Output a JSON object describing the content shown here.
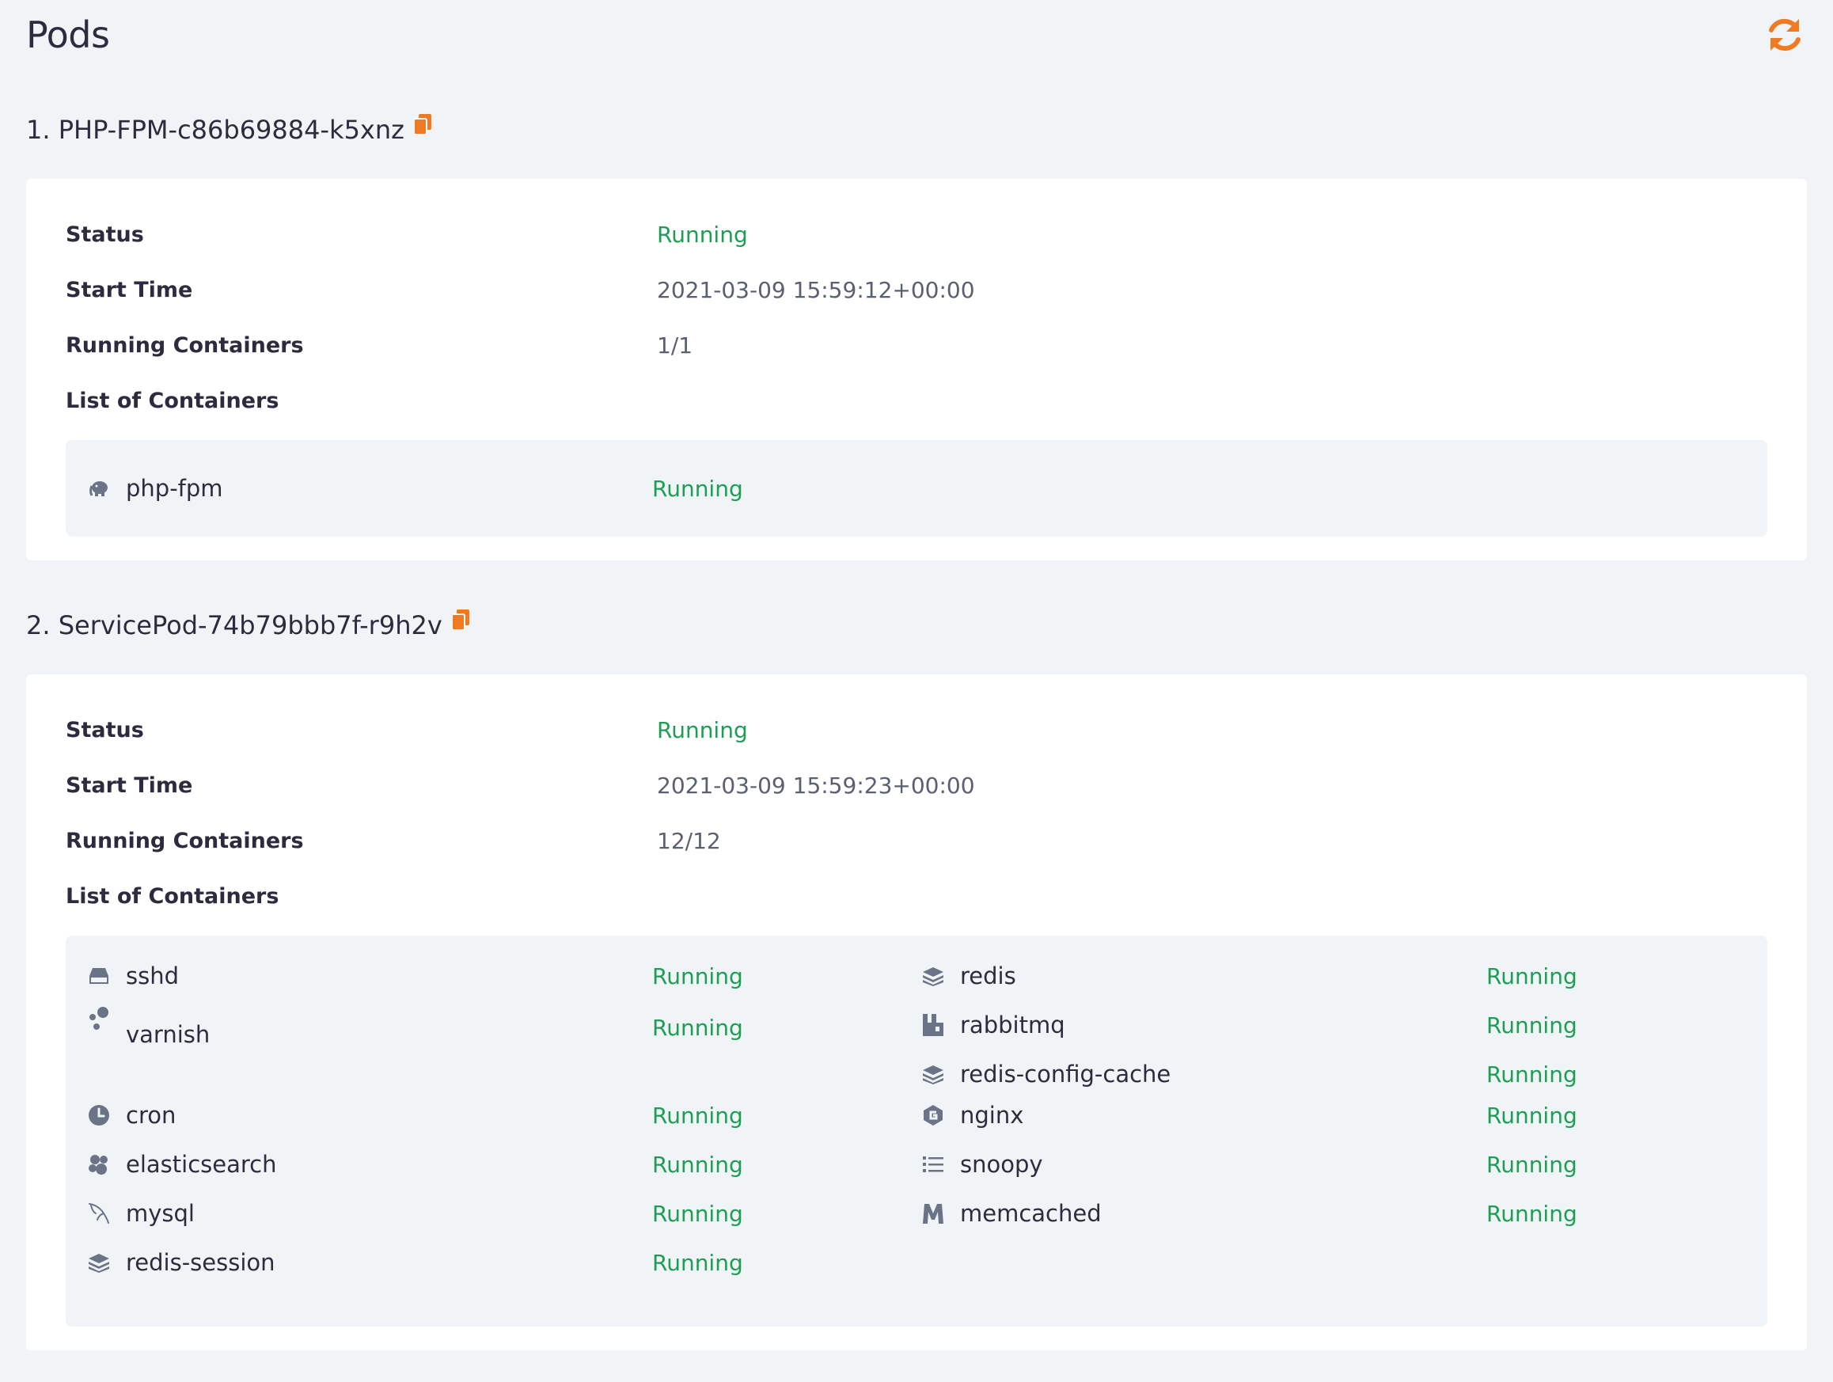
{
  "header": {
    "title": "Pods"
  },
  "pods": [
    {
      "heading": "1. PHP-FPM-c86b69884-k5xnz",
      "status_label": "Status",
      "status_value": "Running",
      "start_label": "Start Time",
      "start_value": "2021-03-09 15:59:12+00:00",
      "running_label": "Running Containers",
      "running_value": "1/1",
      "list_label": "List of Containers",
      "containers": [
        {
          "name": "php-fpm",
          "status": "Running",
          "icon": "elephant-icon"
        }
      ]
    },
    {
      "heading": "2. ServicePod-74b79bbb7f-r9h2v",
      "status_label": "Status",
      "status_value": "Running",
      "start_label": "Start Time",
      "start_value": "2021-03-09 15:59:23+00:00",
      "running_label": "Running Containers",
      "running_value": "12/12",
      "list_label": "List of Containers",
      "containers_left": [
        {
          "name": "sshd",
          "status": "Running",
          "icon": "hdd-icon"
        },
        {
          "name": "varnish",
          "status": "Running",
          "icon": "bubbles-icon"
        },
        {
          "name": "cron",
          "status": "Running",
          "icon": "clock-icon"
        },
        {
          "name": "elasticsearch",
          "status": "Running",
          "icon": "cluster-icon"
        },
        {
          "name": "mysql",
          "status": "Running",
          "icon": "dolphin-icon"
        },
        {
          "name": "redis-session",
          "status": "Running",
          "icon": "layers-icon"
        }
      ],
      "containers_right": [
        {
          "name": "redis",
          "status": "Running",
          "icon": "layers-icon"
        },
        {
          "name": "rabbitmq",
          "status": "Running",
          "icon": "rabbitmq-icon"
        },
        {
          "name": "redis-config-cache",
          "status": "Running",
          "icon": "layers-icon"
        },
        {
          "name": "nginx",
          "status": "Running",
          "icon": "nginx-icon"
        },
        {
          "name": "snoopy",
          "status": "Running",
          "icon": "list-icon"
        },
        {
          "name": "memcached",
          "status": "Running",
          "icon": "m-letter-icon"
        }
      ]
    }
  ],
  "colors": {
    "accent": "#f07a22",
    "running": "#1e9e54",
    "icon": "#6b7487"
  }
}
